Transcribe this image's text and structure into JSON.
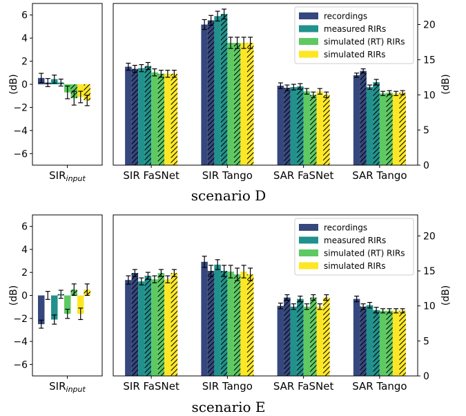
{
  "colors": {
    "recordings": "#35477d",
    "measured": "#21918c",
    "simulated_rt": "#5ec962",
    "simulated": "#fde725"
  },
  "chart_data": [
    {
      "type": "bar",
      "caption": "scenario D",
      "ylabel_left": "(dB)",
      "ylabel_right": "(dB)",
      "left_ylim": [
        -7,
        7
      ],
      "left_yticks": [
        -6,
        -4,
        -2,
        0,
        2,
        4,
        6
      ],
      "right_ylim": [
        0,
        23
      ],
      "right_yticks": [
        0,
        5,
        10,
        15,
        20
      ],
      "left_category": "SIR",
      "left_category_sub": "input",
      "categories": [
        "SIR FaSNet",
        "SIR Tango",
        "SAR FaSNet",
        "SAR Tango"
      ],
      "legend": [
        "recordings",
        "measured RIRs",
        "simulated (RT) RIRs",
        "simulated RIRs"
      ],
      "left_values": [
        [
          0.55,
          0.15
        ],
        [
          0.45,
          0.15
        ],
        [
          -0.7,
          -1.2
        ],
        [
          -1.1,
          -1.4
        ]
      ],
      "left_errors": [
        [
          0.4,
          0.35
        ],
        [
          0.35,
          0.3
        ],
        [
          0.55,
          0.6
        ],
        [
          0.5,
          0.45
        ]
      ],
      "values": [
        [
          [
            14.0,
            13.7
          ],
          [
            20.0,
            20.6
          ],
          [
            11.3,
            11.0
          ],
          [
            12.8,
            13.4
          ]
        ],
        [
          [
            13.8,
            14.1
          ],
          [
            21.2,
            21.5
          ],
          [
            11.1,
            11.2
          ],
          [
            11.1,
            11.8
          ]
        ],
        [
          [
            13.2,
            13.0
          ],
          [
            17.4,
            17.4
          ],
          [
            10.5,
            10.0
          ],
          [
            10.2,
            10.3
          ]
        ],
        [
          [
            13.0,
            13.0
          ],
          [
            17.4,
            17.4
          ],
          [
            10.5,
            10.0
          ],
          [
            10.2,
            10.3
          ]
        ]
      ],
      "errors": [
        [
          [
            0.5,
            0.5
          ],
          [
            0.7,
            0.7
          ],
          [
            0.4,
            0.4
          ],
          [
            0.3,
            0.3
          ]
        ],
        [
          [
            0.5,
            0.5
          ],
          [
            0.7,
            0.7
          ],
          [
            0.4,
            0.4
          ],
          [
            0.3,
            0.4
          ]
        ],
        [
          [
            0.5,
            0.5
          ],
          [
            0.8,
            0.8
          ],
          [
            0.4,
            0.4
          ],
          [
            0.3,
            0.3
          ]
        ],
        [
          [
            0.5,
            0.5
          ],
          [
            0.8,
            0.8
          ],
          [
            0.4,
            0.4
          ],
          [
            0.3,
            0.3
          ]
        ]
      ]
    },
    {
      "type": "bar",
      "caption": "scenario E",
      "ylabel_left": "(dB)",
      "ylabel_right": "(dB)",
      "left_ylim": [
        -7,
        7
      ],
      "left_yticks": [
        -6,
        -4,
        -2,
        0,
        2,
        4,
        6
      ],
      "right_ylim": [
        0,
        23
      ],
      "right_yticks": [
        0,
        5,
        10,
        15,
        20
      ],
      "left_category": "SIR",
      "left_category_sub": "input",
      "categories": [
        "SIR FaSNet",
        "SIR Tango",
        "SAR FaSNet",
        "SAR Tango"
      ],
      "legend": [
        "recordings",
        "measured RIRs",
        "simulated (RT) RIRs",
        "simulated RIRs"
      ],
      "left_values": [
        [
          -2.5,
          0.0
        ],
        [
          -2.1,
          0.1
        ],
        [
          -1.6,
          0.5
        ],
        [
          -1.6,
          0.5
        ]
      ],
      "left_errors": [
        [
          0.35,
          0.35
        ],
        [
          0.4,
          0.35
        ],
        [
          0.4,
          0.5
        ],
        [
          0.5,
          0.5
        ]
      ],
      "values": [
        [
          [
            13.7,
            14.7
          ],
          [
            16.3,
            15.0
          ],
          [
            10.0,
            11.2
          ],
          [
            11.0,
            9.9
          ]
        ],
        [
          [
            13.5,
            14.3
          ],
          [
            15.9,
            15.0
          ],
          [
            9.9,
            11.0
          ],
          [
            10.1,
            9.4
          ]
        ],
        [
          [
            13.8,
            14.7
          ],
          [
            14.9,
            14.5
          ],
          [
            9.9,
            11.2
          ],
          [
            9.3,
            9.3
          ]
        ],
        [
          [
            13.8,
            14.7
          ],
          [
            14.9,
            14.5
          ],
          [
            9.9,
            11.2
          ],
          [
            9.3,
            9.3
          ]
        ]
      ],
      "errors": [
        [
          [
            0.6,
            0.5
          ],
          [
            0.8,
            0.8
          ],
          [
            0.4,
            0.4
          ],
          [
            0.4,
            0.4
          ]
        ],
        [
          [
            0.5,
            0.5
          ],
          [
            0.7,
            0.8
          ],
          [
            0.4,
            0.4
          ],
          [
            0.4,
            0.4
          ]
        ],
        [
          [
            0.5,
            0.5
          ],
          [
            0.9,
            0.9
          ],
          [
            0.4,
            0.4
          ],
          [
            0.3,
            0.3
          ]
        ],
        [
          [
            0.5,
            0.5
          ],
          [
            0.9,
            0.9
          ],
          [
            0.4,
            0.4
          ],
          [
            0.3,
            0.3
          ]
        ]
      ]
    }
  ]
}
